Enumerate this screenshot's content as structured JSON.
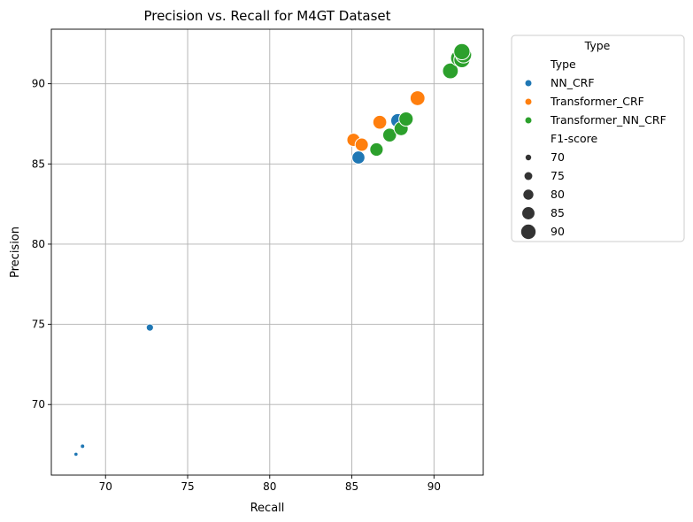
{
  "chart_data": {
    "type": "scatter",
    "title": "Precision vs. Recall for M4GT Dataset",
    "xlabel": "Recall",
    "ylabel": "Precision",
    "xlim": [
      66.7,
      93.0
    ],
    "ylim": [
      65.6,
      93.4
    ],
    "xticks": [
      70,
      75,
      80,
      85,
      90
    ],
    "yticks": [
      70,
      75,
      80,
      85,
      90
    ],
    "grid": true,
    "colors": {
      "NN_CRF": "#1f77b4",
      "Transformer_CRF": "#ff7f0e",
      "Transformer_NN_CRF": "#2ca02c"
    },
    "size_variable": "F1-score",
    "size_levels": [
      70,
      75,
      80,
      85,
      90
    ],
    "series": [
      {
        "name": "NN_CRF",
        "points": [
          {
            "x": 68.2,
            "y": 66.9,
            "f1": 67.5
          },
          {
            "x": 68.6,
            "y": 67.4,
            "f1": 68.0
          },
          {
            "x": 72.7,
            "y": 74.8,
            "f1": 73.7
          },
          {
            "x": 85.4,
            "y": 85.4,
            "f1": 85.4
          },
          {
            "x": 87.8,
            "y": 87.7,
            "f1": 87.7
          }
        ]
      },
      {
        "name": "Transformer_CRF",
        "points": [
          {
            "x": 85.1,
            "y": 86.5,
            "f1": 85.8
          },
          {
            "x": 85.6,
            "y": 86.2,
            "f1": 85.9
          },
          {
            "x": 86.7,
            "y": 87.6,
            "f1": 87.1
          },
          {
            "x": 89.0,
            "y": 89.1,
            "f1": 89.1
          },
          {
            "x": 91.6,
            "y": 91.7,
            "f1": 91.6
          }
        ]
      },
      {
        "name": "Transformer_NN_CRF",
        "points": [
          {
            "x": 86.5,
            "y": 85.9,
            "f1": 86.2
          },
          {
            "x": 87.3,
            "y": 86.8,
            "f1": 87.0
          },
          {
            "x": 88.0,
            "y": 87.2,
            "f1": 87.6
          },
          {
            "x": 88.3,
            "y": 87.8,
            "f1": 88.0
          },
          {
            "x": 91.0,
            "y": 90.8,
            "f1": 90.9
          },
          {
            "x": 91.5,
            "y": 91.6,
            "f1": 91.5
          },
          {
            "x": 91.7,
            "y": 91.5,
            "f1": 91.6
          },
          {
            "x": 91.8,
            "y": 91.8,
            "f1": 91.8
          },
          {
            "x": 91.7,
            "y": 92.0,
            "f1": 91.9
          }
        ]
      }
    ],
    "legend": {
      "title": "Type",
      "hue_header": "Type",
      "hue_entries": [
        "NN_CRF",
        "Transformer_CRF",
        "Transformer_NN_CRF"
      ],
      "size_header": "F1-score",
      "size_entries": [
        "70",
        "75",
        "80",
        "85",
        "90"
      ],
      "placement": "outside-upper-right"
    }
  }
}
